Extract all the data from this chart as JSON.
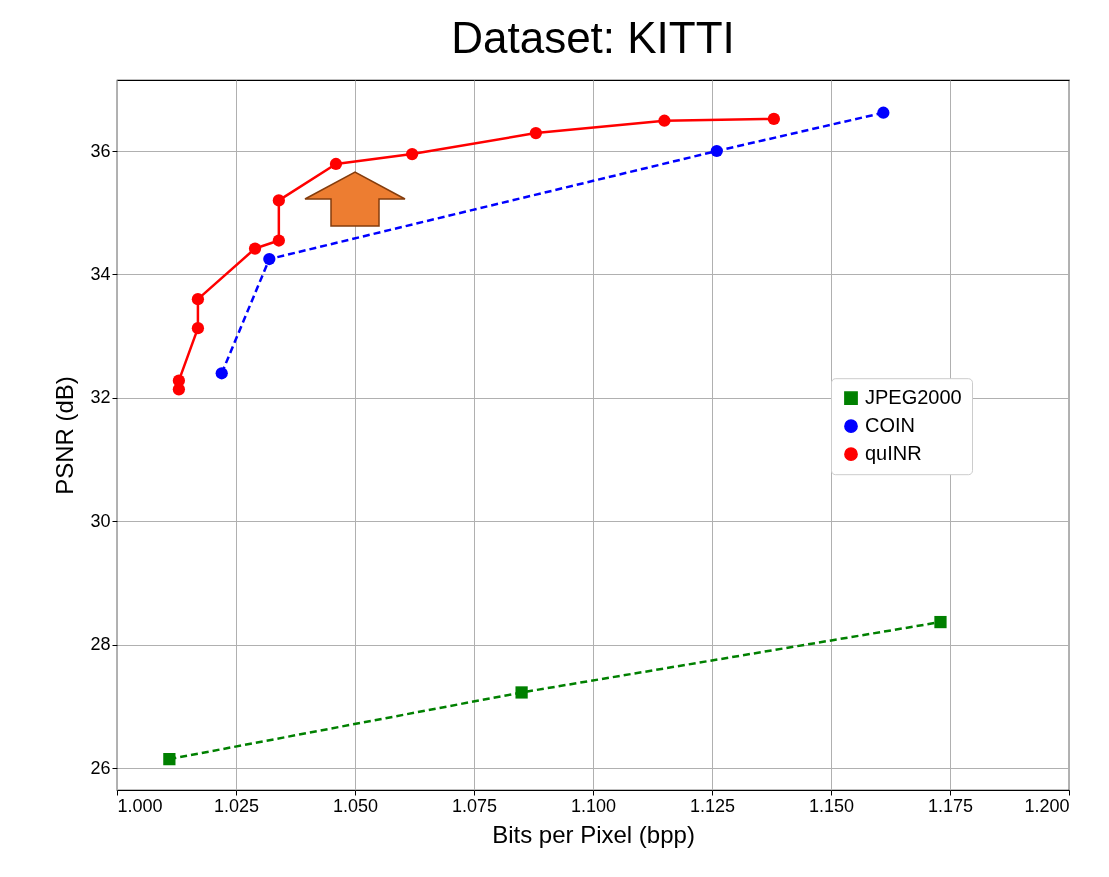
{
  "chart_data": {
    "type": "line",
    "title": "Dataset: KITTI",
    "xlabel": "Bits per Pixel (bpp)",
    "ylabel": "PSNR (dB)",
    "xlim": [
      1.0,
      1.2
    ],
    "xticks": [
      {
        "value": 1.0,
        "label": "1.000"
      },
      {
        "value": 1.025,
        "label": "1.025"
      },
      {
        "value": 1.05,
        "label": "1.050"
      },
      {
        "value": 1.075,
        "label": "1.075"
      },
      {
        "value": 1.1,
        "label": "1.100"
      },
      {
        "value": 1.125,
        "label": "1.125"
      },
      {
        "value": 1.15,
        "label": "1.150"
      },
      {
        "value": 1.175,
        "label": "1.175"
      },
      {
        "value": 1.2,
        "label": "1.200"
      }
    ],
    "ylim": [
      25.65,
      37.15
    ],
    "yticks": [
      26,
      28,
      30,
      32,
      34,
      36
    ],
    "grid": true,
    "legend": "right",
    "series": [
      {
        "name": "JPEG2000",
        "color": "#008000",
        "marker": "square",
        "line_style": "dashed",
        "x": [
          1.011,
          1.085,
          1.173
        ],
        "values": [
          26.15,
          27.23,
          28.37
        ]
      },
      {
        "name": "COIN",
        "color": "#0000ff",
        "marker": "circle",
        "line_style": "dashed",
        "x": [
          1.022,
          1.032,
          1.126,
          1.161
        ],
        "values": [
          32.4,
          34.25,
          36.0,
          36.62
        ]
      },
      {
        "name": "quINR",
        "color": "#ff0000",
        "marker": "circle",
        "line_style": "solid",
        "x": [
          1.013,
          1.013,
          1.017,
          1.017,
          1.029,
          1.034,
          1.034,
          1.046,
          1.062,
          1.088,
          1.115,
          1.138
        ],
        "values": [
          32.14,
          32.28,
          33.13,
          33.6,
          34.42,
          34.55,
          35.2,
          35.79,
          35.95,
          36.29,
          36.49,
          36.52
        ]
      }
    ]
  }
}
